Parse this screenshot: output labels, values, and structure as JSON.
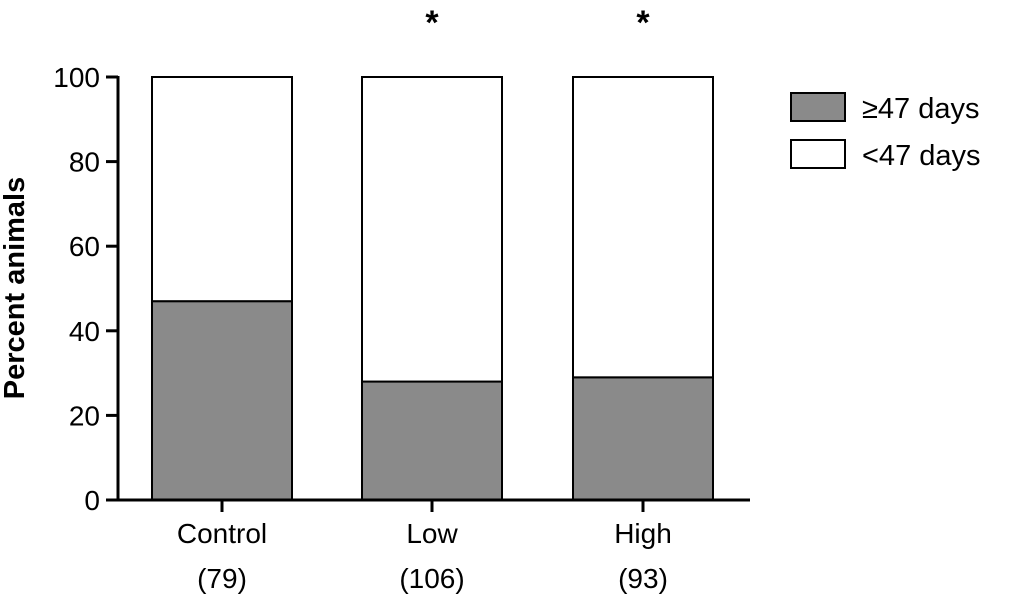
{
  "chart_data": {
    "type": "bar",
    "stacked": true,
    "categories": [
      "Control",
      "Low",
      "High"
    ],
    "category_counts": [
      "(79)",
      "(106)",
      "(93)"
    ],
    "series": [
      {
        "name": "≥47 days",
        "values": [
          47,
          28,
          29
        ],
        "color": "#8a8a8a"
      },
      {
        "name": "<47 days",
        "values": [
          53,
          72,
          71
        ],
        "color": "#ffffff"
      }
    ],
    "significance_markers": [
      "",
      "*",
      "*"
    ],
    "ylabel": "Percent animals",
    "ylim": [
      0,
      100
    ],
    "yticks": [
      0,
      20,
      40,
      60,
      80,
      100
    ],
    "grid": false,
    "legend_position": "top-right"
  }
}
